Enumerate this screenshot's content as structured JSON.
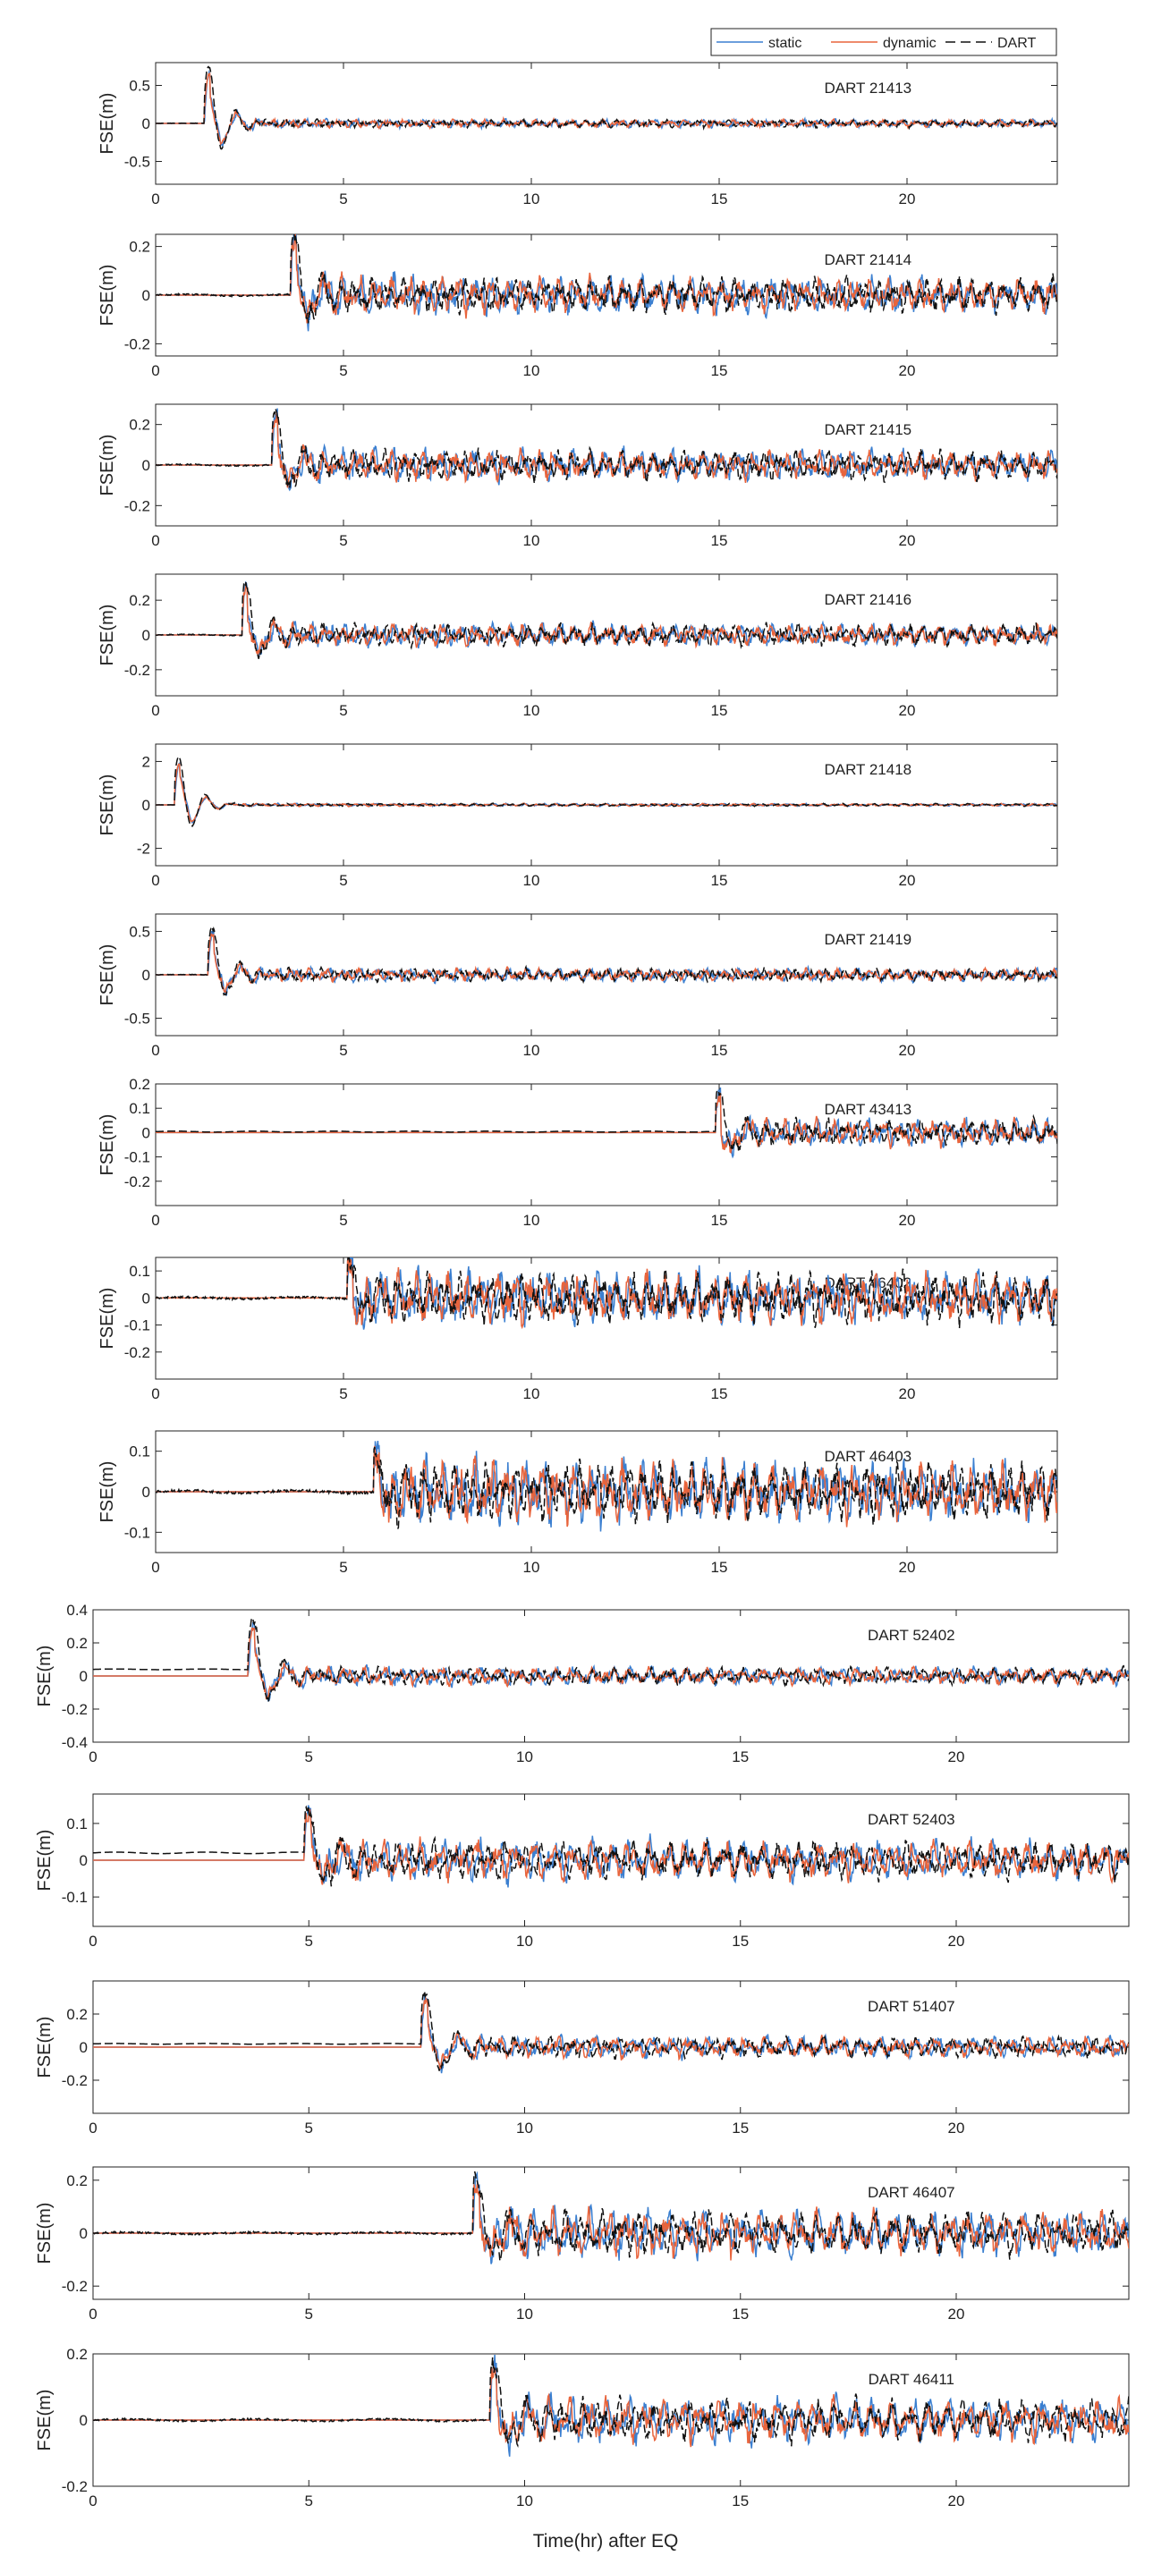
{
  "legend": {
    "entries": [
      {
        "label": "static",
        "color": "#3b7fd0",
        "dash": false
      },
      {
        "label": "dynamic",
        "color": "#e8643c",
        "dash": false
      },
      {
        "label": "DART",
        "color": "#111111",
        "dash": true
      }
    ],
    "placement": "top-right"
  },
  "xlabel_bottom": "Time(hr) after EQ",
  "chart_data": [
    {
      "type": "line",
      "station": "DART 21413",
      "ylabel": "FSE(m)",
      "xlim": [
        0,
        24
      ],
      "ylim": [
        -0.8,
        0.8
      ],
      "yticks": [
        0.5,
        0,
        -0.5
      ],
      "ytick_labels": [
        "0.5",
        "0",
        "-0.5"
      ],
      "xticks": [
        0,
        5,
        10,
        15,
        20
      ],
      "arrival_hr": 1.3,
      "peak": [
        0.75,
        -0.5
      ],
      "noise_amp": 0.05,
      "dart_pre_offset": 0.0,
      "dart_pre_start": 1.3,
      "series": [
        "static",
        "dynamic",
        "DART"
      ]
    },
    {
      "type": "line",
      "station": "DART 21414",
      "ylabel": "FSE(m)",
      "xlim": [
        0,
        24
      ],
      "ylim": [
        -0.25,
        0.25
      ],
      "yticks": [
        0.2,
        0,
        -0.2
      ],
      "ytick_labels": [
        "0.2",
        "0",
        "-0.2"
      ],
      "xticks": [
        0,
        5,
        10,
        15,
        20
      ],
      "arrival_hr": 3.6,
      "peak": [
        0.26,
        -0.2
      ],
      "noise_amp": 0.07,
      "dart_pre_offset": 0.0,
      "dart_pre_start": 0,
      "series": [
        "static",
        "dynamic",
        "DART"
      ]
    },
    {
      "type": "line",
      "station": "DART 21415",
      "ylabel": "FSE(m)",
      "xlim": [
        0,
        24
      ],
      "ylim": [
        -0.3,
        0.3
      ],
      "yticks": [
        0.2,
        0,
        -0.2
      ],
      "ytick_labels": [
        "0.2",
        "0",
        "-0.2"
      ],
      "xticks": [
        0,
        5,
        10,
        15,
        20
      ],
      "arrival_hr": 3.1,
      "peak": [
        0.27,
        -0.22
      ],
      "noise_amp": 0.07,
      "dart_pre_offset": 0.0,
      "dart_pre_start": 0,
      "series": [
        "static",
        "dynamic",
        "DART"
      ]
    },
    {
      "type": "line",
      "station": "DART 21416",
      "ylabel": "FSE(m)",
      "xlim": [
        0,
        24
      ],
      "ylim": [
        -0.35,
        0.35
      ],
      "yticks": [
        0.2,
        0,
        -0.2
      ],
      "ytick_labels": [
        "0.2",
        "0",
        "-0.2"
      ],
      "xticks": [
        0,
        5,
        10,
        15,
        20
      ],
      "arrival_hr": 2.3,
      "peak": [
        0.3,
        -0.27
      ],
      "noise_amp": 0.06,
      "dart_pre_offset": 0.0,
      "dart_pre_start": 0,
      "series": [
        "static",
        "dynamic",
        "DART"
      ]
    },
    {
      "type": "line",
      "station": "DART 21418",
      "ylabel": "FSE(m)",
      "xlim": [
        0,
        24
      ],
      "ylim": [
        -2.8,
        2.8
      ],
      "yticks": [
        2,
        0,
        -2
      ],
      "ytick_labels": [
        "2",
        "0",
        "-2"
      ],
      "xticks": [
        0,
        5,
        10,
        15,
        20
      ],
      "arrival_hr": 0.5,
      "peak": [
        2.2,
        -1.0
      ],
      "noise_amp": 0.06,
      "dart_pre_offset": 0.0,
      "dart_pre_start": 0.5,
      "series": [
        "static",
        "dynamic",
        "DART"
      ]
    },
    {
      "type": "line",
      "station": "DART 21419",
      "ylabel": "FSE(m)",
      "xlim": [
        0,
        24
      ],
      "ylim": [
        -0.7,
        0.7
      ],
      "yticks": [
        0.5,
        0,
        -0.5
      ],
      "ytick_labels": [
        "0.5",
        "0",
        "-0.5"
      ],
      "xticks": [
        0,
        5,
        10,
        15,
        20
      ],
      "arrival_hr": 1.4,
      "peak": [
        0.55,
        -0.4
      ],
      "noise_amp": 0.07,
      "dart_pre_offset": 0.0,
      "dart_pre_start": 0,
      "series": [
        "static",
        "dynamic",
        "DART"
      ]
    },
    {
      "type": "line",
      "station": "DART 43413",
      "ylabel": "FSE(m)",
      "xlim": [
        0,
        24
      ],
      "ylim": [
        -0.3,
        0.2
      ],
      "yticks": [
        0.2,
        0.1,
        0,
        -0.1,
        -0.2
      ],
      "ytick_labels": [
        "0.2",
        "0.1",
        "0",
        "-0.1",
        "-0.2"
      ],
      "xticks": [
        0,
        5,
        10,
        15,
        20
      ],
      "arrival_hr": 14.9,
      "peak": [
        0.17,
        -0.27
      ],
      "noise_amp": 0.05,
      "dart_pre_offset": 0.004,
      "dart_pre_start": 0,
      "series": [
        "static",
        "dynamic",
        "DART"
      ]
    },
    {
      "type": "line",
      "station": "DART 46402",
      "ylabel": "FSE(m)",
      "xlim": [
        0,
        24
      ],
      "ylim": [
        -0.3,
        0.15
      ],
      "yticks": [
        0.1,
        0,
        -0.1,
        -0.2
      ],
      "ytick_labels": [
        "0.1",
        "0",
        "-0.1",
        "-0.2"
      ],
      "xticks": [
        0,
        5,
        10,
        15,
        20
      ],
      "arrival_hr": 5.1,
      "peak": [
        0.13,
        -0.2
      ],
      "noise_amp": 0.09,
      "dart_pre_offset": 0.0,
      "dart_pre_start": 0,
      "series": [
        "static",
        "dynamic",
        "DART"
      ]
    },
    {
      "type": "line",
      "station": "DART 46403",
      "ylabel": "FSE(m)",
      "xlim": [
        0,
        24
      ],
      "ylim": [
        -0.15,
        0.15
      ],
      "yticks": [
        0.1,
        0,
        -0.1
      ],
      "ytick_labels": [
        "0.1",
        "0",
        "-0.1"
      ],
      "xticks": [
        0,
        5,
        10,
        15,
        20
      ],
      "arrival_hr": 5.8,
      "peak": [
        0.08,
        -0.1
      ],
      "noise_amp": 0.07,
      "dart_pre_offset": 0.0,
      "dart_pre_start": 0,
      "series": [
        "static",
        "dynamic",
        "DART"
      ]
    },
    {
      "type": "line",
      "station": "DART 52402",
      "ylabel": "FSE(m)",
      "xlim": [
        0,
        24
      ],
      "ylim": [
        -0.4,
        0.4
      ],
      "yticks": [
        0.4,
        0.2,
        0,
        -0.2,
        -0.4
      ],
      "ytick_labels": [
        "0.4",
        "0.2",
        "0",
        "-0.2",
        "-0.4"
      ],
      "xticks": [
        0,
        5,
        10,
        15,
        20
      ],
      "arrival_hr": 3.6,
      "peak": [
        0.35,
        -0.24
      ],
      "noise_amp": 0.05,
      "dart_pre_offset": 0.04,
      "dart_pre_start": 0,
      "series": [
        "static",
        "dynamic",
        "DART"
      ]
    },
    {
      "type": "line",
      "station": "DART 52403",
      "ylabel": "FSE(m)",
      "xlim": [
        0,
        24
      ],
      "ylim": [
        -0.18,
        0.18
      ],
      "yticks": [
        0.1,
        0,
        -0.1
      ],
      "ytick_labels": [
        "0.1",
        "0",
        "-0.1"
      ],
      "xticks": [
        0,
        5,
        10,
        15,
        20
      ],
      "arrival_hr": 4.9,
      "peak": [
        0.14,
        -0.1
      ],
      "noise_amp": 0.05,
      "dart_pre_offset": 0.02,
      "dart_pre_start": 0,
      "series": [
        "static",
        "dynamic",
        "DART"
      ]
    },
    {
      "type": "line",
      "station": "DART 51407",
      "ylabel": "FSE(m)",
      "xlim": [
        0,
        24
      ],
      "ylim": [
        -0.4,
        0.4
      ],
      "yticks": [
        0.2,
        0,
        -0.2
      ],
      "ytick_labels": [
        "0.2",
        "0",
        "-0.2"
      ],
      "xticks": [
        0,
        5,
        10,
        15,
        20
      ],
      "arrival_hr": 7.6,
      "peak": [
        0.33,
        -0.25
      ],
      "noise_amp": 0.06,
      "dart_pre_offset": 0.02,
      "dart_pre_start": 0,
      "series": [
        "static",
        "dynamic",
        "DART"
      ]
    },
    {
      "type": "line",
      "station": "DART 46407",
      "ylabel": "FSE(m)",
      "xlim": [
        0,
        24
      ],
      "ylim": [
        -0.25,
        0.25
      ],
      "yticks": [
        0.2,
        0,
        -0.2
      ],
      "ytick_labels": [
        "0.2",
        "0",
        "-0.2"
      ],
      "xticks": [
        0,
        5,
        10,
        15,
        20
      ],
      "arrival_hr": 8.8,
      "peak": [
        0.2,
        -0.2
      ],
      "noise_amp": 0.08,
      "dart_pre_offset": 0.0,
      "dart_pre_start": 0,
      "series": [
        "static",
        "dynamic",
        "DART"
      ]
    },
    {
      "type": "line",
      "station": "DART 46411",
      "ylabel": "FSE(m)",
      "xlim": [
        0,
        24
      ],
      "ylim": [
        -0.2,
        0.2
      ],
      "yticks": [
        0.2,
        0,
        -0.2
      ],
      "ytick_labels": [
        "0.2",
        "0",
        "-0.2"
      ],
      "xticks": [
        0,
        5,
        10,
        15,
        20
      ],
      "arrival_hr": 9.2,
      "peak": [
        0.17,
        -0.17
      ],
      "noise_amp": 0.06,
      "dart_pre_offset": 0.0,
      "dart_pre_start": 0,
      "series": [
        "static",
        "dynamic",
        "DART"
      ]
    }
  ]
}
